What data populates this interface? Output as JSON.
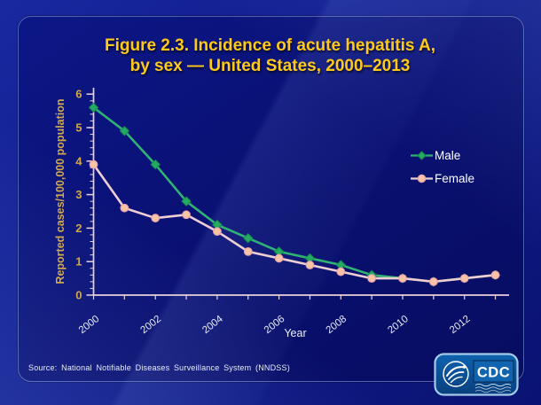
{
  "slide": {
    "title_line1": "Figure 2.3. Incidence of acute hepatitis A,",
    "title_line2": "by sex — United States, 2000–2013",
    "source": "Source: National Notifiable Diseases Surveillance System (NNDSS)",
    "logo_text": "CDC"
  },
  "chart_data": {
    "type": "line",
    "title": "Figure 2.3. Incidence of acute hepatitis A, by sex — United States, 2000–2013",
    "xlabel": "Year",
    "ylabel": "Reported cases/100,000 population",
    "x": [
      2000,
      2001,
      2002,
      2003,
      2004,
      2005,
      2006,
      2007,
      2008,
      2009,
      2010,
      2011,
      2012,
      2013
    ],
    "series": [
      {
        "name": "Male",
        "marker": "diamond",
        "color": "#30b272",
        "marker_fill": "#25aa64",
        "marker_edge": "#148e4e",
        "values": [
          5.6,
          4.9,
          3.9,
          2.8,
          2.1,
          1.7,
          1.3,
          1.1,
          0.9,
          0.6,
          0.5,
          0.4,
          0.5,
          0.6
        ]
      },
      {
        "name": "Female",
        "marker": "circle",
        "color": "#eeced2",
        "marker_fill": "#f9c3a5",
        "marker_edge": "#eaa2ac",
        "values": [
          3.9,
          2.6,
          2.3,
          2.4,
          1.9,
          1.3,
          1.1,
          0.9,
          0.7,
          0.5,
          0.5,
          0.4,
          0.5,
          0.6
        ]
      }
    ],
    "ylim": [
      0,
      6
    ],
    "y_ticks": [
      0,
      1,
      2,
      3,
      4,
      5,
      6
    ],
    "y_minor_step": 0.2,
    "x_tick_label_years": [
      2000,
      2002,
      2004,
      2006,
      2008,
      2010,
      2012
    ],
    "grid": false,
    "legend_position": "right-middle"
  },
  "colors": {
    "background": "#0e1a89",
    "panel": "#091071",
    "title": "#ffc91a",
    "axis_text_gold": "#d2a94a",
    "axis_line": "#ead2d8",
    "x_tick_label": "#e8ecf7",
    "x_axis_title": "#eef1f8",
    "legend_text": "#ffffff",
    "source_text": "#e8edf6",
    "logo_border": "#a6cbe9",
    "logo_bg": "#0d57a4"
  }
}
